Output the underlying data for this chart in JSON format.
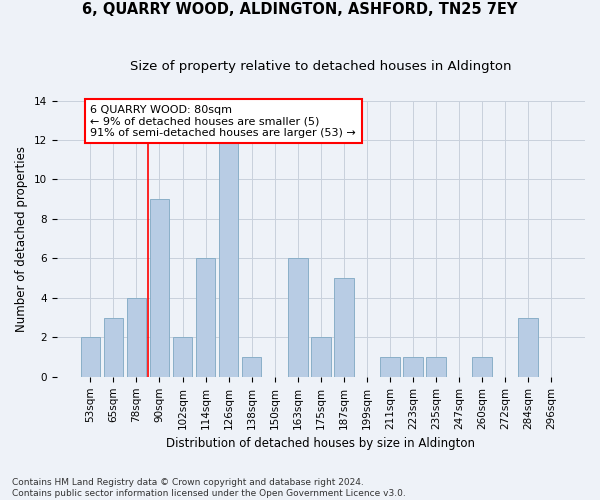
{
  "title": "6, QUARRY WOOD, ALDINGTON, ASHFORD, TN25 7EY",
  "subtitle": "Size of property relative to detached houses in Aldington",
  "xlabel": "Distribution of detached houses by size in Aldington",
  "ylabel": "Number of detached properties",
  "categories": [
    "53sqm",
    "65sqm",
    "78sqm",
    "90sqm",
    "102sqm",
    "114sqm",
    "126sqm",
    "138sqm",
    "150sqm",
    "163sqm",
    "175sqm",
    "187sqm",
    "199sqm",
    "211sqm",
    "223sqm",
    "235sqm",
    "247sqm",
    "260sqm",
    "272sqm",
    "284sqm",
    "296sqm"
  ],
  "values": [
    2,
    3,
    4,
    9,
    2,
    6,
    12,
    1,
    0,
    6,
    2,
    5,
    0,
    1,
    1,
    1,
    0,
    1,
    0,
    3,
    0
  ],
  "bar_color": "#b8cce4",
  "bar_edge_color": "#8aafc8",
  "vline_x_index": 2,
  "vline_color": "red",
  "annotation_text": "6 QUARRY WOOD: 80sqm\n← 9% of detached houses are smaller (5)\n91% of semi-detached houses are larger (53) →",
  "annotation_box_color": "white",
  "annotation_box_edge_color": "red",
  "ylim": [
    0,
    14
  ],
  "yticks": [
    0,
    2,
    4,
    6,
    8,
    10,
    12,
    14
  ],
  "footer": "Contains HM Land Registry data © Crown copyright and database right 2024.\nContains public sector information licensed under the Open Government Licence v3.0.",
  "title_fontsize": 10.5,
  "subtitle_fontsize": 9.5,
  "xlabel_fontsize": 8.5,
  "ylabel_fontsize": 8.5,
  "tick_fontsize": 7.5,
  "footer_fontsize": 6.5,
  "annotation_fontsize": 8,
  "background_color": "#eef2f8",
  "grid_color": "#c8d0dc"
}
